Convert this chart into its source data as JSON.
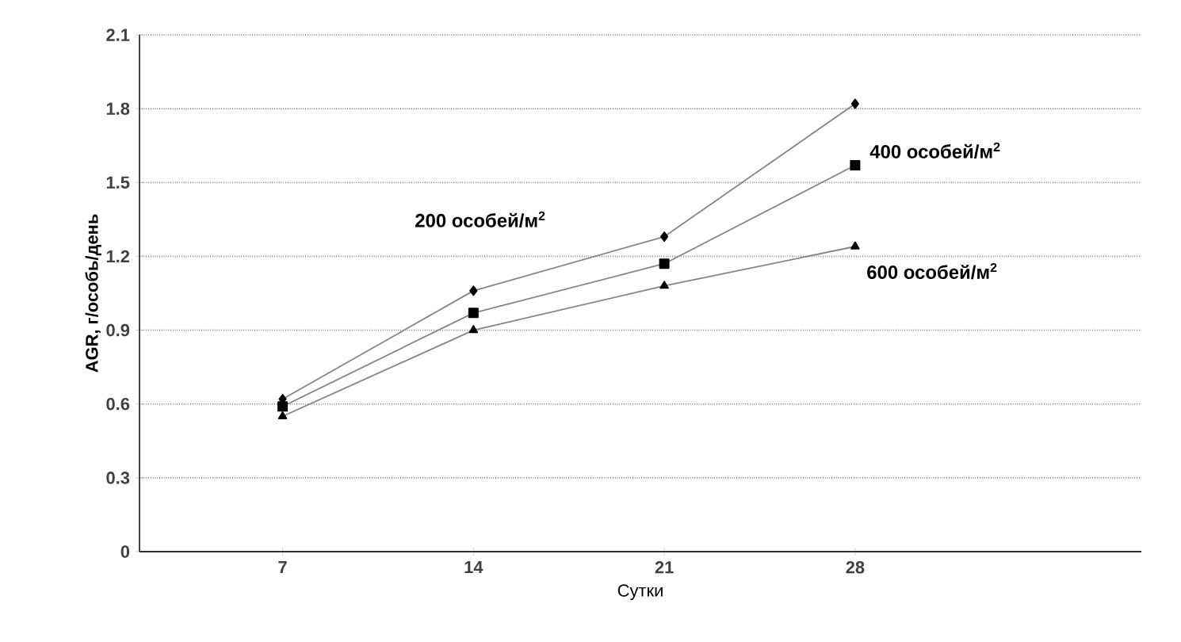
{
  "chart_data": {
    "type": "line",
    "xlabel": "Сутки",
    "ylabel": "AGR, г/особь/день",
    "categories": [
      "7",
      "14",
      "21",
      "28"
    ],
    "series": [
      {
        "name": "200 особей/м$^{2}$",
        "color": "#858585",
        "marker": "diamond",
        "values": [
          0.62,
          1.06,
          1.28,
          1.82
        ]
      },
      {
        "name": "400 особей/м$^{2}$",
        "color": "#858585",
        "marker": "square",
        "values": [
          0.59,
          0.97,
          1.17,
          1.57
        ]
      },
      {
        "name": "600 особей/м$^{2}$",
        "color": "#858585",
        "marker": "triangle",
        "values": [
          0.55,
          0.9,
          1.08,
          1.24
        ]
      }
    ],
    "ylim": [
      0,
      2.1
    ],
    "yticks": [
      0,
      0.3,
      0.6,
      0.9,
      1.2,
      1.5,
      1.8,
      2.1
    ],
    "grid": "y"
  }
}
